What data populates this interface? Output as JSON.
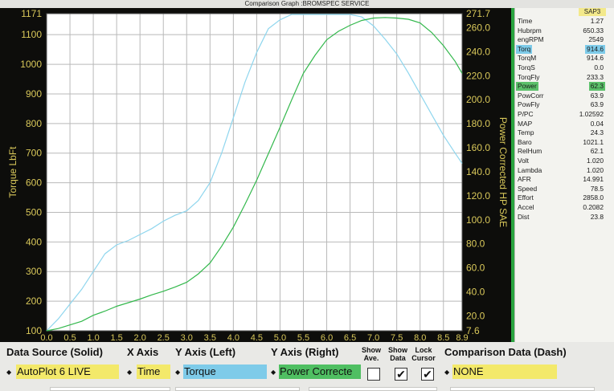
{
  "window_title": "Comparison Graph :BROMSPEC SERVICE",
  "colors": {
    "torque_line": "#8fd6ee",
    "power_line": "#33b84c",
    "plot_bg": "#ffffff",
    "frame_bg": "#0d0d0b",
    "frame_text": "#d9c85a",
    "yellow_field": "#f3e96a",
    "blue_field": "#7ecbe9",
    "green_field": "#4fbf62"
  },
  "chart_data": {
    "type": "line",
    "x": [
      0.0,
      0.25,
      0.5,
      0.75,
      1.0,
      1.25,
      1.5,
      1.75,
      2.0,
      2.25,
      2.5,
      2.75,
      3.0,
      3.25,
      3.5,
      3.75,
      4.0,
      4.25,
      4.5,
      4.75,
      5.0,
      5.25,
      5.5,
      5.75,
      6.0,
      6.25,
      6.5,
      6.75,
      7.0,
      7.25,
      7.5,
      7.75,
      8.0,
      8.25,
      8.5,
      8.75,
      8.9
    ],
    "series": [
      {
        "name": "Torque",
        "axis": "left",
        "values": [
          100,
          140,
          190,
          240,
          300,
          360,
          390,
          405,
          425,
          445,
          470,
          490,
          505,
          540,
          600,
          700,
          820,
          940,
          1040,
          1120,
          1150,
          1171,
          1171,
          1171,
          1171,
          1171,
          1171,
          1160,
          1130,
          1085,
          1035,
          970,
          900,
          830,
          760,
          700,
          665
        ]
      },
      {
        "name": "Power Corrected HP SAE",
        "axis": "right",
        "values": [
          7.6,
          9.5,
          12.5,
          15.5,
          20.5,
          24.0,
          28.0,
          31.0,
          34.0,
          37.5,
          40.5,
          44.0,
          48.0,
          55.0,
          64.0,
          78.0,
          94.0,
          113.0,
          133.0,
          155.0,
          177.0,
          200.0,
          222.0,
          237.0,
          250.0,
          257.0,
          262.0,
          266.0,
          268.0,
          268.5,
          268.0,
          267.0,
          264.0,
          256.0,
          245.0,
          232.0,
          222.0
        ]
      }
    ],
    "x_ticks": [
      "0.0",
      "0.5",
      "1.0",
      "1.5",
      "2.0",
      "2.5",
      "3.0",
      "3.5",
      "4.0",
      "4.5",
      "5.0",
      "5.5",
      "6.0",
      "6.5",
      "7.0",
      "7.5",
      "8.0",
      "8.5",
      "8.9"
    ],
    "y_left_ticks": [
      "1171",
      "1100",
      "1000",
      "900",
      "800",
      "700",
      "600",
      "500",
      "400",
      "300",
      "200",
      "100"
    ],
    "y_right_ticks": [
      "271.7",
      "260.0",
      "240.0",
      "220.0",
      "200.0",
      "180.0",
      "160.0",
      "140.0",
      "120.0",
      "100.0",
      "80.0",
      "60.0",
      "40.0",
      "20.0",
      "7.6"
    ],
    "ylabel_left": "Torque LbFt",
    "ylabel_right": "Power Corrected HP SAE",
    "xlim": [
      0.0,
      8.9
    ],
    "ylim_left": [
      100,
      1171
    ],
    "ylim_right": [
      7.6,
      271.7
    ],
    "grid": true
  },
  "readout": {
    "header": "SAP3",
    "rows": [
      {
        "label": "Time",
        "value": "1.27"
      },
      {
        "label": "Hubrpm",
        "value": "650.33"
      },
      {
        "label": "engRPM",
        "value": "2549"
      },
      {
        "label": "Torq",
        "value": "914.6",
        "hl": "blue"
      },
      {
        "label": "TorqM",
        "value": "914.6"
      },
      {
        "label": "TorqS",
        "value": "0.0"
      },
      {
        "label": "TorqFly",
        "value": "233.3"
      },
      {
        "label": "Power",
        "value": "62.3",
        "hl": "green"
      },
      {
        "label": "PowCorr",
        "value": "63.9"
      },
      {
        "label": "PowFly",
        "value": "63.9"
      },
      {
        "label": "P/PC",
        "value": "1.02592"
      },
      {
        "label": "MAP",
        "value": "0.04"
      },
      {
        "label": "Temp",
        "value": "24.3"
      },
      {
        "label": "Baro",
        "value": "1021.1"
      },
      {
        "label": "RelHum",
        "value": "62.1"
      },
      {
        "label": "Volt",
        "value": "1.020"
      },
      {
        "label": "Lambda",
        "value": "1.020"
      },
      {
        "label": "AFR",
        "value": "14.991"
      },
      {
        "label": "Speed",
        "value": "78.5"
      },
      {
        "label": "Effort",
        "value": "2858.0"
      },
      {
        "label": "Accel",
        "value": "0.2082"
      },
      {
        "label": "Dist",
        "value": "23.8"
      }
    ]
  },
  "controls": {
    "data_source_label": "Data Source (Solid)",
    "data_source_value": "AutoPlot 6 LIVE",
    "x_axis_label": "X Axis",
    "x_axis_value": "Time",
    "y_left_label": "Y Axis (Left)",
    "y_left_value": "Torque",
    "y_right_label": "Y Axis (Right)",
    "y_right_value": "Power Correcte",
    "show_ave_label": "Show\nAve.",
    "show_data_label": "Show\nData",
    "lock_cursor_label": "Lock\nCursor",
    "show_ave_checked": false,
    "show_data_checked": true,
    "lock_cursor_checked": true,
    "comparison_label": "Comparison Data (Dash)",
    "comparison_value": "NONE",
    "spin_glyph": "◆",
    "check_glyph": "✔"
  }
}
